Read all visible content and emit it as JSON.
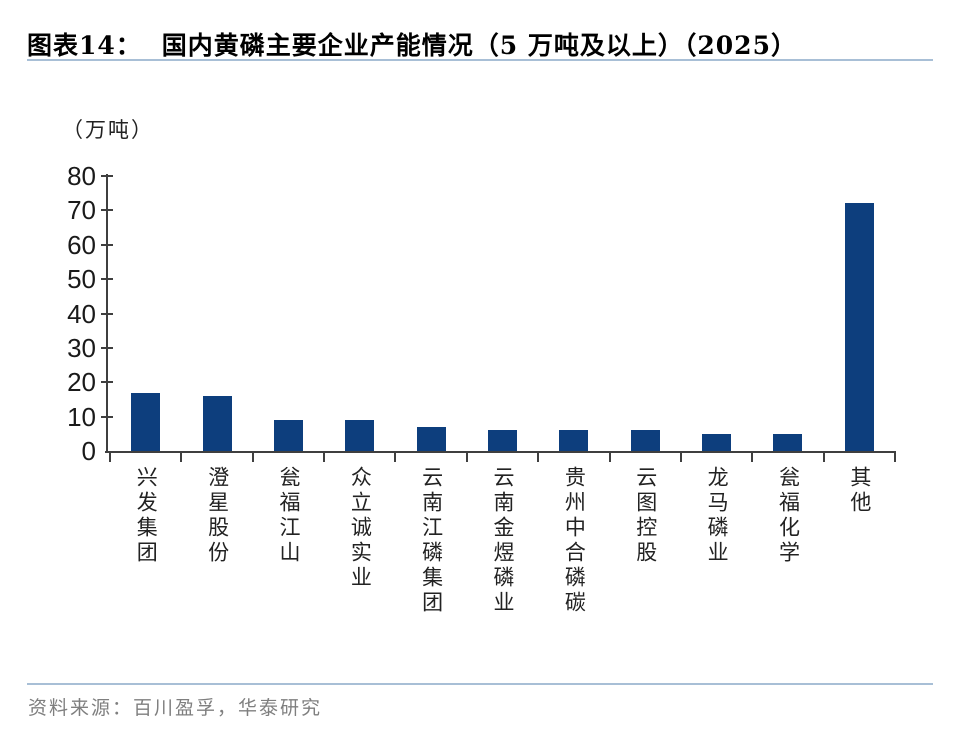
{
  "header": {
    "label": "图表14：",
    "title": "国内黄磷主要企业产能情况（5 万吨及以上）（2025）"
  },
  "chart_data": {
    "type": "bar",
    "title": "国内黄磷主要企业产能情况（5 万吨及以上）（2025）",
    "unit_label": "（万吨）",
    "categories": [
      "兴发集团",
      "澄星股份",
      "瓮福江山",
      "众立诚实业",
      "云南江磷集团",
      "云南金煜磷业",
      "贵州中合磷碳",
      "云图控股",
      "龙马磷业",
      "瓮福化学",
      "其他"
    ],
    "values": [
      17,
      16,
      9,
      9,
      7,
      6,
      6,
      6,
      5,
      5,
      72
    ],
    "xlabel": "",
    "ylabel": "（万吨）",
    "ylim": [
      0,
      80
    ],
    "yticks": [
      0,
      10,
      20,
      30,
      40,
      50,
      60,
      70,
      80
    ],
    "grid": false,
    "legend": "none",
    "bar_color": "#0D3E7D"
  },
  "footer": {
    "source": "资料来源：百川盈孚，华泰研究"
  },
  "colors": {
    "bar": "#0D3E7D",
    "accent_rule": "#A8BFD6",
    "axis": "#3F3F3F",
    "source_text": "#7F7F7F"
  }
}
